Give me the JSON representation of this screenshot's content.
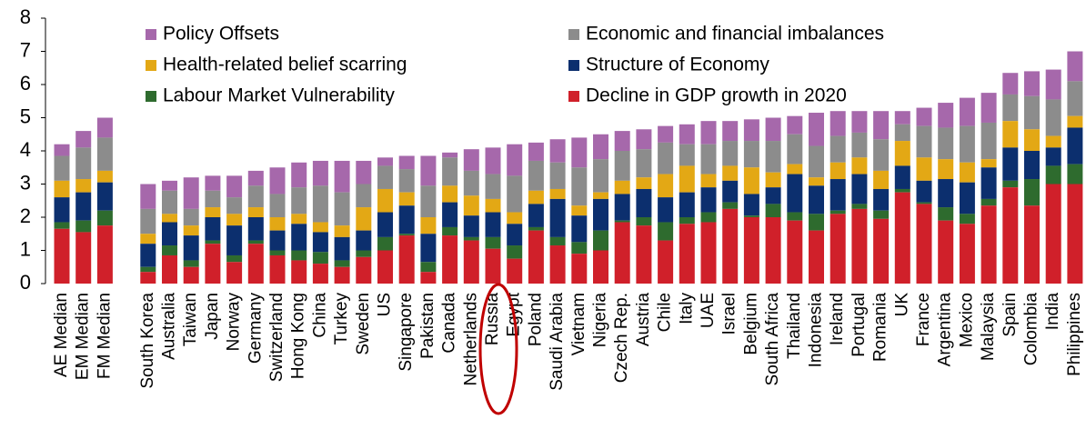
{
  "chart_data": {
    "type": "stacked_bar",
    "categories": [
      "AE Median",
      "EM Median",
      "FM Median",
      null,
      "South Korea",
      "Australia",
      "Taiwan",
      "Japan",
      "Norway",
      "Germany",
      "Switzerland",
      "Hong Kong",
      "China",
      "Turkey",
      "Sweden",
      "US",
      "Singapore",
      "Pakistan",
      "Canada",
      "Netherlands",
      "Russia",
      "Egypt",
      "Poland",
      "Saudi Arabia",
      "Vietnam",
      "Nigeria",
      "Czech Rep.",
      "Austria",
      "Chile",
      "Italy",
      "UAE",
      "Israel",
      "Belgium",
      "South Africa",
      "Thailand",
      "Indonesia",
      "Ireland",
      "Portugal",
      "Romania",
      "UK",
      "France",
      "Argentina",
      "Mexico",
      "Malaysia",
      "Spain",
      "Colombia",
      "India",
      "Philippines"
    ],
    "series": [
      {
        "name": "Decline in GDP growth in 2020",
        "color": "#d0202a",
        "values": [
          1.65,
          1.55,
          1.75,
          null,
          0.35,
          0.85,
          0.5,
          1.2,
          0.65,
          1.2,
          0.85,
          0.7,
          0.6,
          0.5,
          0.8,
          1.0,
          1.45,
          0.35,
          1.45,
          1.3,
          1.05,
          0.75,
          1.6,
          1.15,
          0.9,
          1.0,
          1.85,
          1.75,
          1.3,
          1.8,
          1.85,
          2.25,
          2.0,
          2.0,
          1.9,
          1.6,
          2.1,
          2.25,
          1.95,
          2.75,
          2.4,
          1.9,
          1.8,
          2.35,
          2.9,
          2.35,
          3.0,
          3.0
        ]
      },
      {
        "name": "Labour Market Vulnerability",
        "color": "#2e6b2e",
        "values": [
          0.2,
          0.35,
          0.45,
          null,
          0.15,
          0.3,
          0.2,
          0.1,
          0.2,
          0.1,
          0.15,
          0.3,
          0.35,
          0.2,
          0.2,
          0.4,
          0.05,
          0.3,
          0.25,
          0.1,
          0.35,
          0.4,
          0.1,
          0.25,
          0.35,
          0.6,
          0.05,
          0.25,
          0.55,
          0.2,
          0.3,
          0.2,
          0.05,
          0.4,
          0.25,
          0.5,
          0.1,
          0.15,
          0.25,
          0.1,
          0.05,
          0.4,
          0.3,
          0.2,
          0.2,
          0.8,
          0.55,
          0.6
        ]
      },
      {
        "name": "Structure of Economy",
        "color": "#0c2f6e",
        "values": [
          0.75,
          0.85,
          0.85,
          null,
          0.7,
          0.7,
          0.75,
          0.7,
          0.9,
          0.7,
          0.6,
          0.8,
          0.6,
          0.7,
          0.6,
          0.75,
          0.85,
          0.85,
          0.75,
          0.65,
          0.75,
          0.65,
          0.7,
          1.15,
          0.8,
          0.95,
          0.8,
          0.85,
          0.75,
          0.75,
          0.75,
          0.65,
          0.65,
          0.5,
          1.15,
          0.85,
          0.95,
          0.9,
          0.65,
          0.7,
          0.65,
          0.85,
          0.95,
          0.95,
          1.0,
          0.85,
          0.55,
          1.1
        ]
      },
      {
        "name": "Health-related belief scarring",
        "color": "#e3a815",
        "values": [
          0.5,
          0.4,
          0.35,
          null,
          0.3,
          0.25,
          0.3,
          0.3,
          0.35,
          0.3,
          0.4,
          0.3,
          0.3,
          0.35,
          0.7,
          0.7,
          0.4,
          0.5,
          0.5,
          0.6,
          0.4,
          0.35,
          0.4,
          0.3,
          0.3,
          0.2,
          0.4,
          0.35,
          0.7,
          0.8,
          0.4,
          0.45,
          0.8,
          0.45,
          0.3,
          0.25,
          0.5,
          0.5,
          0.55,
          0.75,
          0.7,
          0.6,
          0.6,
          0.25,
          0.8,
          0.65,
          0.35,
          0.35
        ]
      },
      {
        "name": "Economic and financial imbalances",
        "color": "#8c8c8c",
        "values": [
          0.75,
          0.95,
          1.0,
          null,
          0.75,
          0.7,
          0.5,
          0.5,
          0.5,
          0.65,
          0.7,
          0.8,
          1.1,
          1.0,
          0.7,
          0.7,
          0.7,
          0.95,
          0.85,
          0.75,
          0.75,
          1.1,
          0.9,
          0.8,
          1.15,
          1.0,
          0.9,
          0.85,
          0.95,
          0.65,
          0.9,
          0.75,
          0.8,
          0.95,
          0.9,
          0.95,
          0.8,
          0.75,
          0.95,
          0.5,
          0.95,
          0.95,
          1.1,
          1.1,
          0.8,
          1.0,
          1.1,
          1.05
        ]
      },
      {
        "name": "Policy Offsets",
        "color": "#a668ab",
        "values": [
          0.35,
          0.5,
          0.6,
          null,
          0.75,
          0.3,
          0.95,
          0.45,
          0.65,
          0.45,
          0.8,
          0.75,
          0.75,
          0.95,
          0.7,
          0.25,
          0.4,
          0.9,
          0.15,
          0.65,
          0.8,
          0.95,
          0.55,
          0.7,
          0.9,
          0.75,
          0.6,
          0.6,
          0.5,
          0.6,
          0.7,
          0.6,
          0.65,
          0.7,
          0.55,
          1.0,
          0.75,
          0.65,
          0.85,
          0.4,
          0.55,
          0.75,
          0.85,
          0.9,
          0.65,
          0.75,
          0.9,
          0.9
        ]
      }
    ],
    "ylim": [
      0,
      8
    ],
    "yticks": [
      0,
      1,
      2,
      3,
      4,
      5,
      6,
      7,
      8
    ]
  }
}
